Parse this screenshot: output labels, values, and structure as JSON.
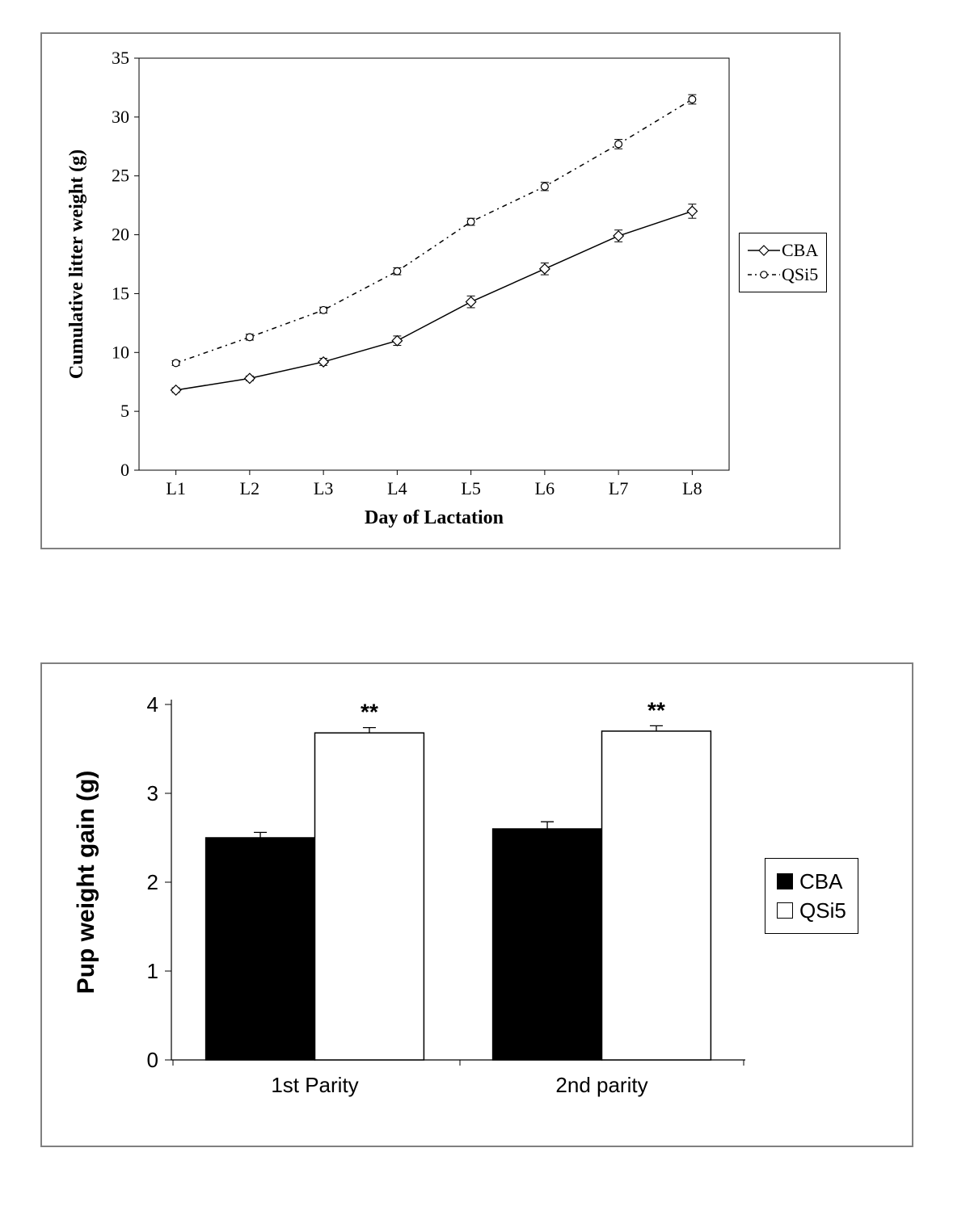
{
  "line_chart": {
    "type": "line",
    "xlabel": "Day of Lactation",
    "ylabel": "Cumulative litter weight (g)",
    "label_fontsize": 24,
    "tick_fontsize": 22,
    "x_categories": [
      "L1",
      "L2",
      "L3",
      "L4",
      "L5",
      "L6",
      "L7",
      "L8"
    ],
    "ylim": [
      0,
      35
    ],
    "ytick_step": 5,
    "yticks": [
      0,
      5,
      10,
      15,
      20,
      25,
      30,
      35
    ],
    "background_color": "#ffffff",
    "border_color": "#808080",
    "axis_color": "#000000",
    "series": [
      {
        "name": "CBA",
        "values": [
          6.8,
          7.8,
          9.2,
          11.0,
          14.3,
          17.1,
          19.9,
          22.0
        ],
        "errors": [
          0.2,
          0.2,
          0.3,
          0.4,
          0.5,
          0.5,
          0.5,
          0.6
        ],
        "line_style": "solid",
        "dash": "",
        "color": "#000000",
        "marker": "diamond-open",
        "marker_size": 8,
        "line_width": 1.5
      },
      {
        "name": "QSi5",
        "values": [
          9.1,
          11.3,
          13.6,
          16.9,
          21.1,
          24.1,
          27.7,
          31.5
        ],
        "errors": [
          0.2,
          0.25,
          0.25,
          0.3,
          0.3,
          0.35,
          0.4,
          0.4
        ],
        "line_style": "dashed",
        "dash": "6,5,2,5",
        "color": "#000000",
        "marker": "circle-open",
        "marker_size": 7,
        "line_width": 1.5
      }
    ],
    "legend": {
      "position": "right",
      "labels": [
        "CBA",
        "QSi5"
      ]
    }
  },
  "bar_chart": {
    "type": "bar-grouped",
    "ylabel": "Pup weight gain (g)",
    "label_fontsize": 30,
    "tick_fontsize": 26,
    "x_categories": [
      "1st Parity",
      "2nd parity"
    ],
    "ylim": [
      0,
      4
    ],
    "ytick_step": 1,
    "yticks": [
      0,
      1,
      2,
      3,
      4
    ],
    "background_color": "#ffffff",
    "border_color": "#808080",
    "axis_color": "#000000",
    "bar_border_color": "#000000",
    "bar_width": 0.38,
    "series": [
      {
        "name": "CBA",
        "fill": "#000000",
        "values": [
          2.5,
          2.6
        ],
        "errors": [
          0.06,
          0.08
        ]
      },
      {
        "name": "QSi5",
        "fill": "#ffffff",
        "values": [
          3.68,
          3.7
        ],
        "errors": [
          0.06,
          0.06
        ]
      }
    ],
    "significance": [
      {
        "group_index": 0,
        "series_index": 1,
        "label": "**"
      },
      {
        "group_index": 1,
        "series_index": 1,
        "label": "**"
      }
    ],
    "legend": {
      "position": "right",
      "labels": [
        "CBA",
        "QSi5"
      ]
    }
  }
}
